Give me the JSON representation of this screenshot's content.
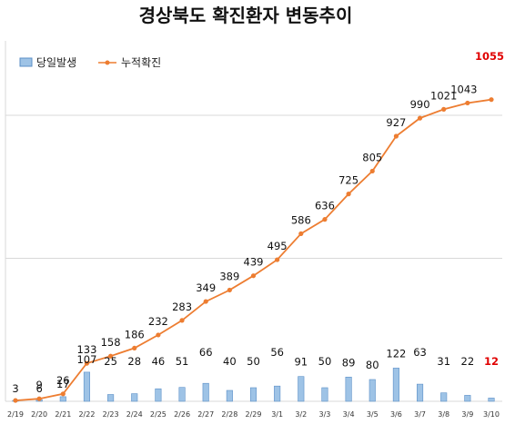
{
  "chart_data": {
    "type": "bar+line",
    "title": "경상북도 확진환자 변동추이",
    "categories": [
      "2/19",
      "2/20",
      "2/21",
      "2/22",
      "2/23",
      "2/24",
      "2/25",
      "2/26",
      "2/27",
      "2/28",
      "2/29",
      "3/1",
      "3/2",
      "3/3",
      "3/4",
      "3/5",
      "3/6",
      "3/7",
      "3/8",
      "3/9",
      "3/10"
    ],
    "series": [
      {
        "name": "당일발생",
        "kind": "bar",
        "values": [
          3,
          6,
          17,
          107,
          25,
          28,
          46,
          51,
          66,
          40,
          50,
          56,
          91,
          50,
          89,
          80,
          122,
          63,
          31,
          22,
          12
        ]
      },
      {
        "name": "누적확진",
        "kind": "line",
        "values": [
          3,
          9,
          26,
          133,
          158,
          186,
          232,
          283,
          349,
          389,
          439,
          495,
          586,
          636,
          725,
          805,
          927,
          990,
          1021,
          1043,
          1055
        ]
      }
    ],
    "legend_position": "top-left",
    "grid": "horizontal",
    "highlight_last": true,
    "colors": {
      "bar_fill": "#9ec3e6",
      "bar_stroke": "#5b8fc7",
      "line": "#ed7d31",
      "grid": "#d9d9d9",
      "highlight": "#e00000"
    }
  }
}
